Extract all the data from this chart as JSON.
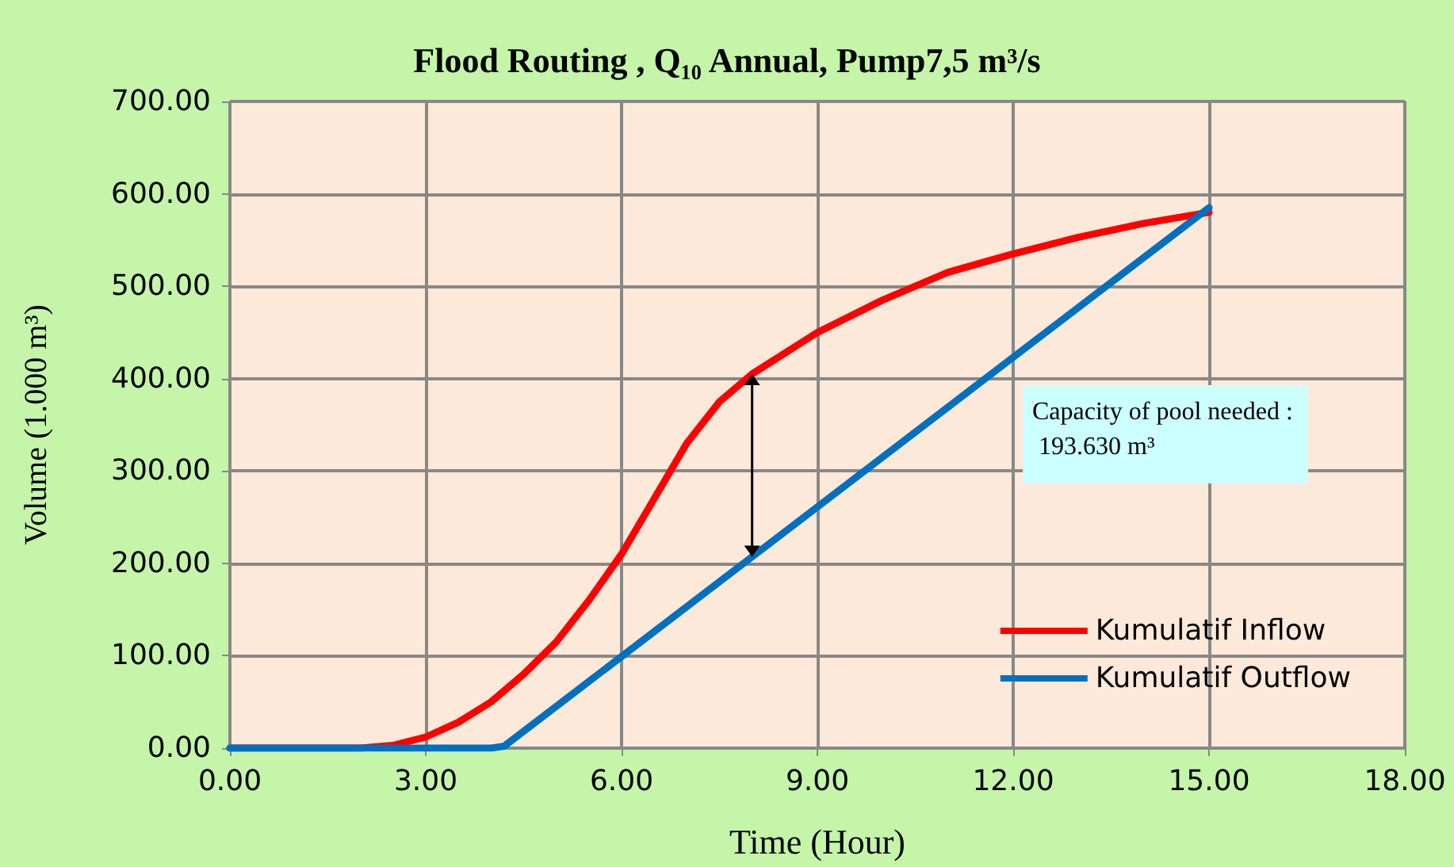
{
  "chart_data": {
    "type": "line",
    "title": "Flood Routing , Q₁₀ Annual, Pump7,5 m³/s",
    "xlabel": "Time (Hour)",
    "ylabel": "Volume (1.000 m³)",
    "xlim": [
      0,
      18
    ],
    "xticks": [
      {
        "value": 0,
        "label": "0.00"
      },
      {
        "value": 3,
        "label": "3.00"
      },
      {
        "value": 6,
        "label": "6.00"
      },
      {
        "value": 9,
        "label": "9.00"
      },
      {
        "value": 12,
        "label": "12.00"
      },
      {
        "value": 15,
        "label": "15.00"
      },
      {
        "value": 18,
        "label": "18.00"
      }
    ],
    "ylim": [
      0,
      700
    ],
    "yticks": [
      {
        "value": 0,
        "label": "0.00"
      },
      {
        "value": 100,
        "label": "100.00"
      },
      {
        "value": 200,
        "label": "200.00"
      },
      {
        "value": 300,
        "label": "300.00"
      },
      {
        "value": 400,
        "label": "400.00"
      },
      {
        "value": 500,
        "label": "500.00"
      },
      {
        "value": 600,
        "label": "600.00"
      },
      {
        "value": 700,
        "label": "700.00"
      }
    ],
    "grid": true,
    "legend": "bottom right",
    "marker": "none",
    "line_style": "solid",
    "annotations": [
      "Capacity of pool needed : 193.630 m³"
    ],
    "series": [
      {
        "name": "Kumulatif Inflow",
        "color": "#ff0000",
        "x": [
          0,
          1,
          2,
          2.5,
          3,
          3.5,
          4,
          4.5,
          5,
          5.5,
          6,
          6.5,
          7,
          7.5,
          8,
          9,
          10,
          11,
          12,
          13,
          14,
          15
        ],
        "values": [
          0,
          0,
          0,
          3,
          12,
          28,
          50,
          80,
          115,
          160,
          210,
          270,
          330,
          375,
          405,
          450,
          485,
          515,
          535,
          553,
          568,
          580
        ]
      },
      {
        "name": "Kumulatif Outflow",
        "color": "#0070c0",
        "x": [
          0,
          4,
          4.2,
          15
        ],
        "values": [
          0,
          0,
          2,
          585
        ]
      }
    ]
  }
}
